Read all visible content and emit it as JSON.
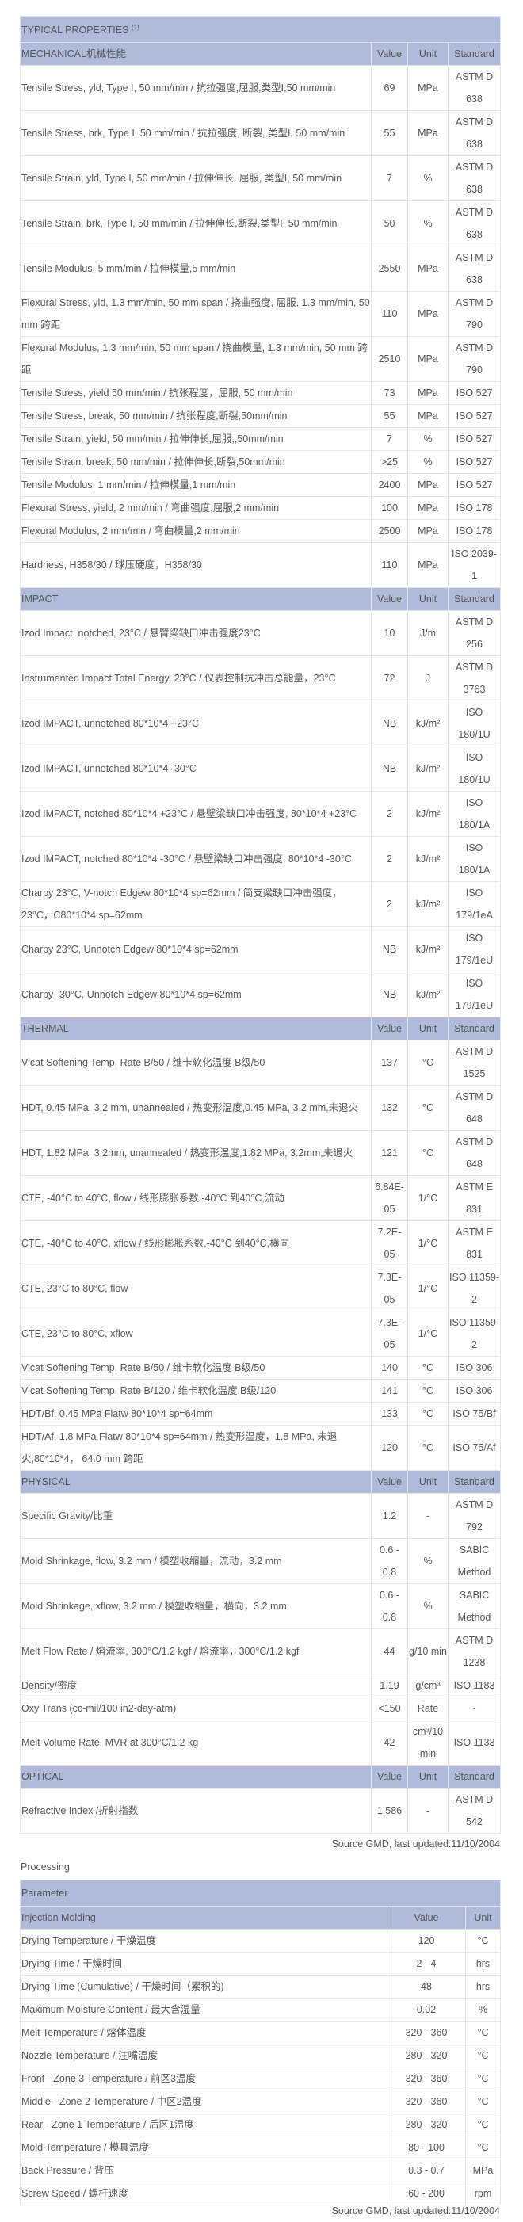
{
  "properties": {
    "title": "TYPICAL PROPERTIES",
    "title_note": "(1)",
    "col_value": "Value",
    "col_unit": "Unit",
    "col_standard": "Standard",
    "sections": [
      {
        "name": "MECHANICAL机械性能",
        "rows": [
          [
            "Tensile Stress, yld, Type I, 50 mm/min / 抗拉强度,屈服,类型I,50 mm/min",
            "69",
            "MPa",
            "ASTM D 638",
            2
          ],
          [
            "Tensile Stress, brk, Type I, 50 mm/min / 抗拉强度, 断裂, 类型I, 50 mm/min",
            "55",
            "MPa",
            "ASTM D 638",
            2
          ],
          [
            "Tensile Strain, yld, Type I, 50 mm/min / 拉伸伸长, 屈服, 类型I, 50 mm/min",
            "7",
            "%",
            "ASTM D 638",
            2
          ],
          [
            "Tensile Strain, brk, Type I, 50 mm/min / 拉伸伸长,断裂,类型I, 50 mm/min",
            "50",
            "%",
            "ASTM D 638",
            2
          ],
          [
            "Tensile Modulus, 5 mm/min / 拉伸模量,5 mm/min",
            "2550",
            "MPa",
            "ASTM D 638",
            2
          ],
          [
            "Flexural Stress, yld, 1.3 mm/min, 50 mm span / 挠曲强度, 屈服, 1.3 mm/min, 50 mm 跨距",
            "110",
            "MPa",
            "ASTM D 790",
            2
          ],
          [
            "Flexural Modulus, 1.3 mm/min, 50 mm span / 挠曲模量, 1.3 mm/min, 50 mm 跨距",
            "2510",
            "MPa",
            "ASTM D 790",
            2
          ],
          [
            "Tensile Stress, yield 50 mm/min / 抗张程度，屈服, 50 mm/min",
            "73",
            "MPa",
            "ISO 527",
            1
          ],
          [
            "Tensile Stress, break, 50 mm/min / 抗张程度,断裂,50mm/min",
            "55",
            "MPa",
            "ISO 527",
            1
          ],
          [
            "Tensile Strain, yield, 50 mm/min / 拉伸伸长,屈服,,50mm/min",
            "7",
            "%",
            "ISO 527",
            1
          ],
          [
            "Tensile Strain, break, 50 mm/min / 拉伸伸长,断裂,50mm/min",
            ">25",
            "%",
            "ISO 527",
            1
          ],
          [
            "Tensile Modulus, 1 mm/min / 拉伸模量,1 mm/min",
            "2400",
            "MPa",
            "ISO 527",
            1
          ],
          [
            "Flexural Stress, yield, 2 mm/min / 弯曲强度,屈服,2 mm/min",
            "100",
            "MPa",
            "ISO 178",
            1
          ],
          [
            "Flexural Modulus, 2 mm/min / 弯曲模量,2 mm/min",
            "2500",
            "MPa",
            "ISO 178",
            1
          ],
          [
            "Hardness, H358/30 / 球压硬度，H358/30",
            "110",
            "MPa",
            "ISO 2039-1",
            2
          ]
        ]
      },
      {
        "name": "IMPACT",
        "rows": [
          [
            "Izod Impact, notched, 23°C / 悬臂梁缺口冲击强度23°C",
            "10",
            "J/m",
            "ASTM D 256",
            2
          ],
          [
            "Instrumented Impact Total Energy, 23°C / 仪表控制抗冲击总能量，23°C",
            "72",
            "J",
            "ASTM D 3763",
            2
          ],
          [
            "Izod IMPACT, unnotched 80*10*4 +23°C",
            "NB",
            "kJ/m²",
            "ISO 180/1U",
            2
          ],
          [
            "Izod IMPACT, unnotched 80*10*4 -30°C",
            "NB",
            "kJ/m²",
            "ISO 180/1U",
            2
          ],
          [
            "Izod IMPACT, notched 80*10*4 +23°C / 悬壁梁缺口冲击强度, 80*10*4 +23°C",
            "2",
            "kJ/m²",
            "ISO 180/1A",
            2
          ],
          [
            "Izod IMPACT, notched 80*10*4 -30°C / 悬壁梁缺口冲击强度, 80*10*4 -30°C",
            "2",
            "kJ/m²",
            "ISO 180/1A",
            2
          ],
          [
            "Charpy 23°C, V-notch Edgew 80*10*4 sp=62mm / 简支梁缺口冲击强度，23°C，C80*10*4 sp=62mm",
            "2",
            "kJ/m²",
            "ISO 179/1eA",
            2
          ],
          [
            "Charpy 23°C, Unnotch Edgew 80*10*4 sp=62mm",
            "NB",
            "kJ/m²",
            "ISO 179/1eU",
            2
          ],
          [
            "Charpy -30°C, Unnotch Edgew 80*10*4 sp=62mm",
            "NB",
            "kJ/m²",
            "ISO 179/1eU",
            2
          ]
        ]
      },
      {
        "name": "THERMAL",
        "rows": [
          [
            "Vicat Softening Temp, Rate B/50 / 维卡软化温度 B级/50",
            "137",
            "°C",
            "ASTM D 1525",
            2
          ],
          [
            "HDT, 0.45 MPa, 3.2 mm, unannealed / 热变形温度,0.45 MPa, 3.2 mm,未退火",
            "132",
            "°C",
            "ASTM D 648",
            2
          ],
          [
            "HDT, 1.82 MPa, 3.2mm, unannealed / 热变形温度,1.82 MPa, 3.2mm,未退火",
            "121",
            "°C",
            "ASTM D 648",
            2
          ],
          [
            "CTE, -40°C to 40°C, flow / 线形膨胀系数,-40°C 到40°C,流动",
            "6.84E-05",
            "1/°C",
            "ASTM E 831",
            2
          ],
          [
            "CTE, -40°C to 40°C, xflow / 线形膨胀系数,-40°C 到40°C,横向",
            "7.2E-05",
            "1/°C",
            "ASTM E 831",
            2
          ],
          [
            "CTE, 23°C to 80°C, flow",
            "7.3E-05",
            "1/°C",
            "ISO 11359-2",
            2
          ],
          [
            "CTE, 23°C to 80°C, xflow",
            "7.3E-05",
            "1/°C",
            "ISO 11359-2",
            2
          ],
          [
            "Vicat Softening Temp, Rate B/50 / 维卡软化温度 B级/50",
            "140",
            "°C",
            "ISO 306",
            1
          ],
          [
            "Vicat Softening Temp, Rate B/120 / 维卡软化温度,B级/120",
            "141",
            "°C",
            "ISO 306",
            1
          ],
          [
            "HDT/Bf, 0.45 MPa Flatw 80*10*4 sp=64mm",
            "133",
            "°C",
            "ISO 75/Bf",
            1
          ],
          [
            "HDT/Af, 1.8 MPa Flatw 80*10*4 sp=64mm / 热变形温度，1.8 MPa, 未退火,80*10*4， 64.0 mm 跨距",
            "120",
            "°C",
            "ISO 75/Af",
            2
          ]
        ]
      },
      {
        "name": "PHYSICAL",
        "rows": [
          [
            "Specific Gravity/比重",
            "1.2",
            "-",
            "ASTM D 792",
            2
          ],
          [
            "Mold Shrinkage, flow, 3.2 mm / 模塑收缩量，流动，3.2 mm",
            "0.6 - 0.8",
            "%",
            "SABIC Method",
            2
          ],
          [
            "Mold Shrinkage, xflow, 3.2 mm / 模塑收缩量，横向，3.2 mm",
            "0.6 - 0.8",
            "%",
            "SABIC Method",
            2
          ],
          [
            "Melt Flow Rate / 熔流率, 300°C/1.2 kgf / 熔流率，300°C/1.2 kgf",
            "44",
            "g/10 min",
            "ASTM D 1238",
            2
          ],
          [
            "Density/密度",
            "1.19",
            "g/cm³",
            "ISO 1183",
            1
          ],
          [
            "Oxy Trans (cc-mil/100 in2-day-atm)",
            "<150",
            "Rate",
            "-",
            1
          ],
          [
            "Melt Volume Rate, MVR at 300°C/1.2 kg",
            "42",
            "cm³/10 min",
            "ISO 1133",
            2
          ]
        ]
      },
      {
        "name": "OPTICAL",
        "rows": [
          [
            "Refractive Index /折射指数",
            "1.586",
            "-",
            "ASTM D 542",
            2
          ]
        ]
      }
    ],
    "source": "Source GMD, last updated:11/10/2004"
  },
  "processing": {
    "title": "Processing",
    "param_header": "Parameter",
    "section": "Injection Molding",
    "col_value": "Value",
    "col_unit": "Unit",
    "rows": [
      [
        "Drying Temperature / 干燥温度",
        "120",
        "°C"
      ],
      [
        "Drying Time / 干燥时间",
        "2 - 4",
        "hrs"
      ],
      [
        "Drying Time (Cumulative) / 干燥时间（累积的)",
        "48",
        "hrs"
      ],
      [
        "Maximum Moisture Content / 最大含湿量",
        "0.02",
        "%"
      ],
      [
        "Melt Temperature / 熔体温度",
        "320 - 360",
        "°C"
      ],
      [
        "Nozzle Temperature / 注嘴温度",
        "280 - 320",
        "°C"
      ],
      [
        "Front - Zone 3 Temperature / 前区3温度",
        "320 - 360",
        "°C"
      ],
      [
        "Middle - Zone 2 Temperature / 中区2温度",
        "320 - 360",
        "°C"
      ],
      [
        "Rear - Zone 1 Temperature / 后区1温度",
        "280 - 320",
        "°C"
      ],
      [
        "Mold Temperature / 模具温度",
        "80 - 100",
        "°C"
      ],
      [
        "Back Pressure / 背压",
        "0.3 - 0.7",
        "MPa"
      ],
      [
        "Screw Speed / 螺杆速度",
        "60 - 200",
        "rpm"
      ]
    ],
    "source": "Source GMD, last updated:11/10/2004"
  },
  "colors": {
    "header_bg": "#b0bbdb",
    "border": "#333333",
    "text": "#555555"
  }
}
